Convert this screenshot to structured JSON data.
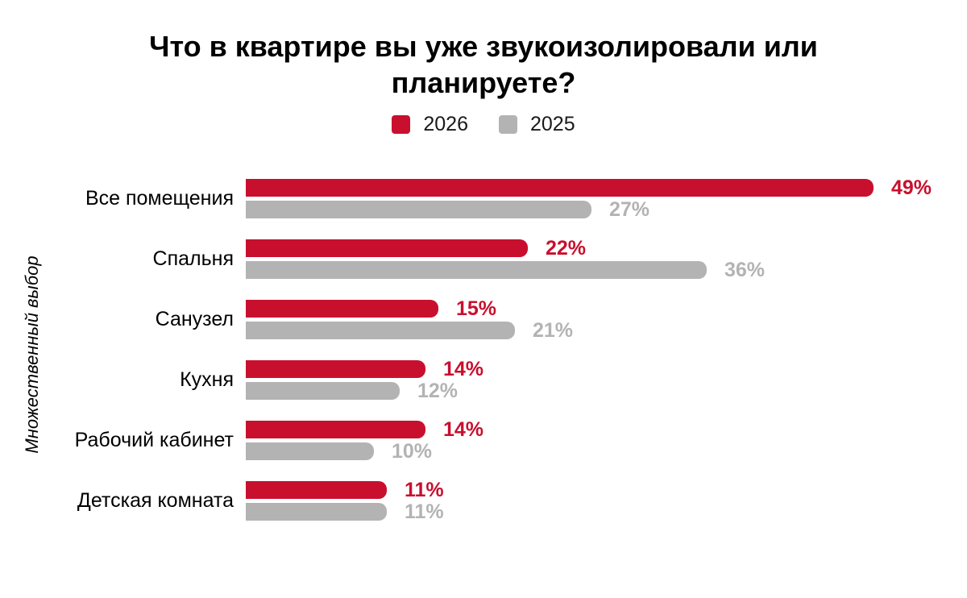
{
  "title": "Что в квартире вы уже звукоизолировали или планируете?",
  "ylabel": "Множественный выбор",
  "colors": {
    "background": "#ffffff",
    "title_text": "#000000",
    "series_2026": "#C8102E",
    "series_2025": "#B3B3B3"
  },
  "legend": {
    "position": "top-center",
    "items": [
      {
        "label": "2026",
        "color": "#C8102E"
      },
      {
        "label": "2025",
        "color": "#B3B3B3"
      }
    ]
  },
  "chart_data": {
    "type": "bar",
    "orientation": "horizontal",
    "title": "Что в квартире вы уже звукоизолировали или планируете?",
    "xlabel": "",
    "ylabel": "Множественный выбор",
    "grid": false,
    "axis_ticks_visible": false,
    "value_suffix": "%",
    "xlim": [
      0,
      52
    ],
    "categories": [
      "Все помещения",
      "Спальня",
      "Санузел",
      "Кухня",
      "Рабочий кабинет",
      "Детская комната"
    ],
    "series": [
      {
        "name": "2026",
        "color": "#C8102E",
        "values": [
          49,
          22,
          15,
          14,
          14,
          11
        ]
      },
      {
        "name": "2025",
        "color": "#B3B3B3",
        "values": [
          27,
          36,
          21,
          12,
          10,
          11
        ]
      }
    ]
  }
}
